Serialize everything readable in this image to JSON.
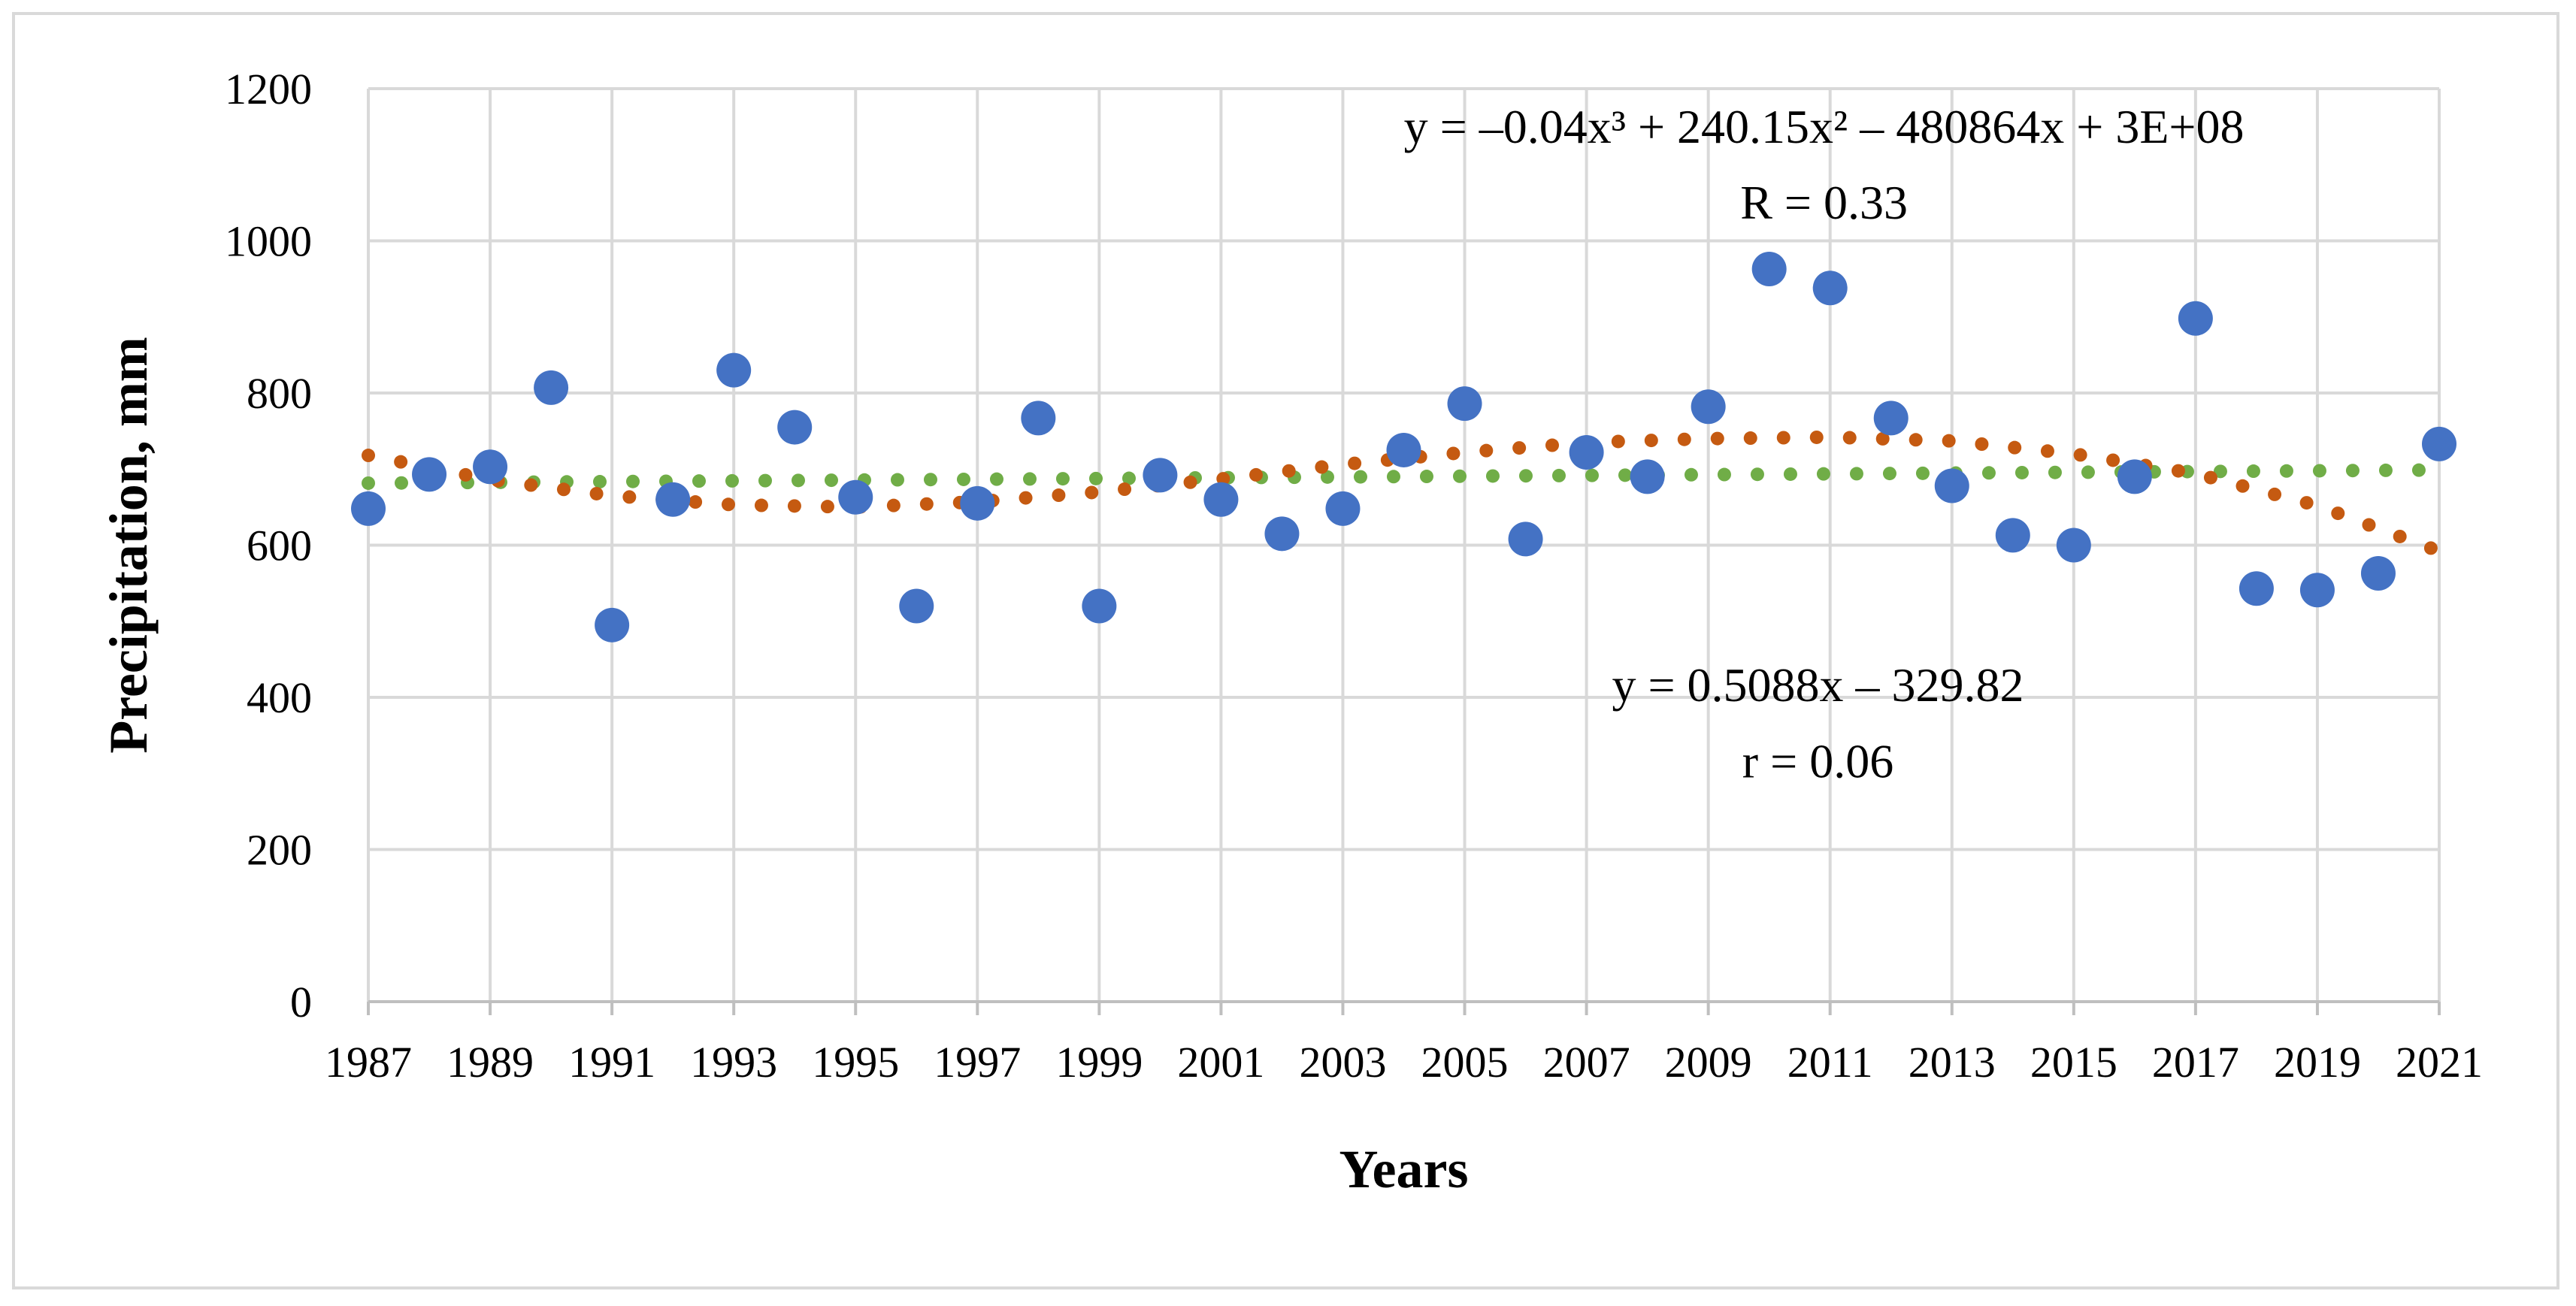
{
  "chart_data": {
    "type": "scatter",
    "title": "",
    "xlabel": "Years",
    "ylabel": "Precipitation, mm",
    "xlim": [
      1987,
      2021
    ],
    "ylim": [
      0,
      1200
    ],
    "grid": true,
    "y_ticks": [
      0,
      200,
      400,
      600,
      800,
      1000,
      1200
    ],
    "x_ticks": [
      1987,
      1989,
      1991,
      1993,
      1995,
      1997,
      1999,
      2001,
      2003,
      2005,
      2007,
      2009,
      2011,
      2013,
      2015,
      2017,
      2019,
      2021
    ],
    "series": [
      {
        "name": "Precipitation",
        "kind": "scatter",
        "color": "#4472c4",
        "x": [
          1987,
          1988,
          1989,
          1990,
          1991,
          1992,
          1993,
          1994,
          1995,
          1996,
          1997,
          1998,
          1999,
          2000,
          2001,
          2002,
          2003,
          2004,
          2005,
          2006,
          2007,
          2008,
          2009,
          2010,
          2011,
          2012,
          2013,
          2014,
          2015,
          2016,
          2017,
          2018,
          2019,
          2020,
          2021
        ],
        "y": [
          648,
          693,
          703,
          807,
          495,
          660,
          830,
          755,
          663,
          520,
          655,
          767,
          520,
          692,
          660,
          615,
          648,
          725,
          786,
          608,
          722,
          690,
          782,
          963,
          938,
          767,
          678,
          613,
          600,
          690,
          898,
          543,
          541,
          563,
          733
        ]
      },
      {
        "name": "Linear trend",
        "kind": "dotted-line",
        "color": "#70ad47",
        "x": [
          1987,
          2021
        ],
        "y": [
          681.5,
          698.8
        ]
      },
      {
        "name": "Polynomial trend",
        "kind": "dotted-line",
        "color": "#c55a11",
        "x": [
          1987,
          1989,
          1991,
          1993,
          1995,
          1997,
          1999,
          2001,
          2003,
          2005,
          2007,
          2009,
          2011,
          2013,
          2015,
          2017,
          2019,
          2021
        ],
        "y": [
          718,
          686,
          665,
          653,
          650,
          657,
          670,
          687,
          706,
          722,
          735,
          740,
          742,
          737,
          720,
          694,
          652,
          592
        ]
      }
    ],
    "annotations": [
      {
        "id": "poly_eq",
        "text": "y = –0.04x³ + 240.15x² – 480864x + 3E+08",
        "x": 2010.9,
        "y": 1129
      },
      {
        "id": "poly_r",
        "text": "R = 0.33",
        "x": 2010.9,
        "y": 1029
      },
      {
        "id": "lin_eq",
        "text": "y = 0.5088x – 329.82",
        "x": 2010.8,
        "y": 395
      },
      {
        "id": "lin_r",
        "text": "r = 0.06",
        "x": 2010.8,
        "y": 295
      }
    ]
  }
}
